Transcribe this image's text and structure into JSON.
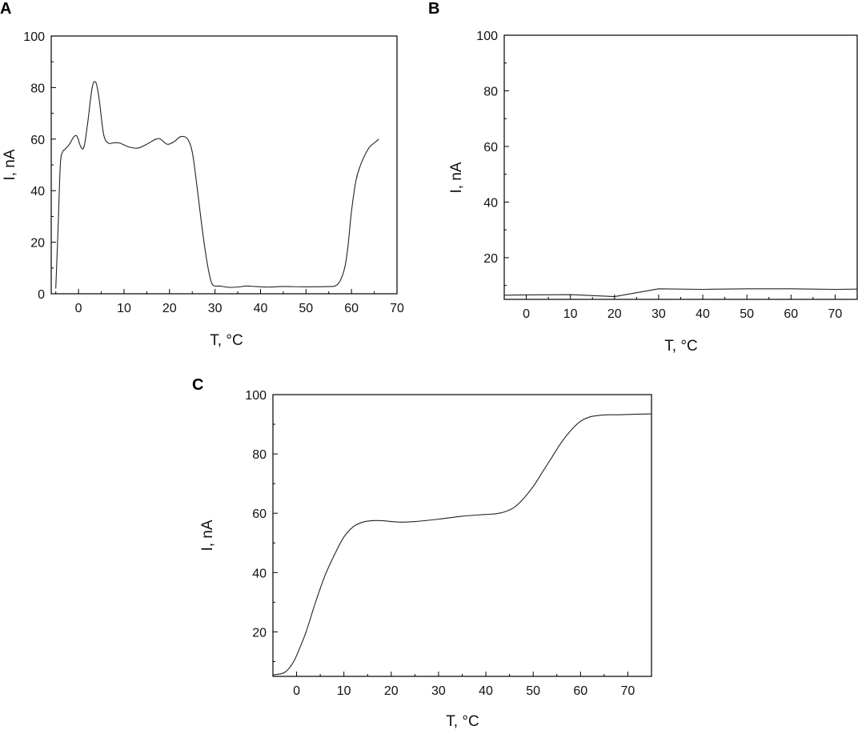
{
  "chart_data": [
    {
      "panel": "A",
      "type": "line",
      "xlabel": "T, °C",
      "ylabel": "I, nA",
      "xlim": [
        -6,
        70
      ],
      "ylim": [
        0,
        100
      ],
      "xticks": [
        0,
        10,
        20,
        30,
        40,
        50,
        60,
        70
      ],
      "yticks": [
        0,
        20,
        40,
        60,
        80,
        100
      ],
      "grid": false,
      "series": [
        {
          "x": [
            -5,
            -4.5,
            -4,
            -3.5,
            -3,
            -2,
            -1,
            -0.3,
            0.5,
            1.2,
            2,
            3,
            3.8,
            4.5,
            5.5,
            6.5,
            7.5,
            9,
            11,
            13,
            15,
            17,
            18,
            19.5,
            21,
            22.5,
            24,
            25,
            25.8,
            26.5,
            27.2,
            28,
            28.7,
            29.3,
            30,
            31,
            33,
            35,
            37,
            39,
            42,
            45,
            50,
            55,
            56.5,
            57.5,
            58.5,
            59.2,
            60,
            61,
            62,
            63,
            64,
            65,
            66
          ],
          "y": [
            2,
            25,
            50,
            55,
            56,
            58,
            61,
            61,
            57,
            57,
            66,
            80,
            82,
            76,
            62,
            58.5,
            58.5,
            58.5,
            57,
            56.5,
            58,
            60,
            60,
            58,
            59,
            61,
            60,
            55,
            45,
            35,
            25,
            15,
            8,
            4,
            3,
            3,
            2.5,
            2.6,
            3,
            2.8,
            2.6,
            2.8,
            2.7,
            2.8,
            3.1,
            5,
            10,
            18,
            32,
            44,
            50,
            54,
            57,
            58.5,
            60
          ]
        }
      ]
    },
    {
      "panel": "B",
      "type": "line",
      "xlabel": "T, °C",
      "ylabel": "I, nA",
      "xlim": [
        -5,
        75
      ],
      "ylim": [
        5,
        100
      ],
      "xticks": [
        0,
        10,
        20,
        30,
        40,
        50,
        60,
        70
      ],
      "yticks": [
        20,
        40,
        60,
        80,
        100
      ],
      "grid": false,
      "series": [
        {
          "x": [
            -5,
            0,
            10,
            20,
            30,
            40,
            50,
            60,
            70,
            75
          ],
          "y": [
            6.5,
            6.6,
            6.7,
            6,
            8.8,
            8.6,
            8.8,
            8.8,
            8.6,
            8.7
          ]
        }
      ]
    },
    {
      "panel": "C",
      "type": "line",
      "xlabel": "T, °C",
      "ylabel": "I, nA",
      "xlim": [
        -5,
        75
      ],
      "ylim": [
        5,
        100
      ],
      "xticks": [
        0,
        10,
        20,
        30,
        40,
        50,
        60,
        70
      ],
      "yticks": [
        20,
        40,
        60,
        80,
        100
      ],
      "grid": false,
      "series": [
        {
          "x": [
            -5,
            -3,
            -2,
            -1,
            0,
            2,
            4,
            6,
            8,
            10,
            12,
            14,
            16,
            18,
            20,
            22,
            25,
            30,
            35,
            40,
            42,
            44,
            46,
            48,
            50,
            52,
            54,
            56,
            58,
            60,
            62,
            64,
            66,
            68,
            70,
            72,
            75
          ],
          "y": [
            5.5,
            6,
            7,
            9,
            12,
            20,
            30,
            39,
            46,
            52,
            55.5,
            57,
            57.5,
            57.5,
            57.2,
            57,
            57.2,
            58,
            59,
            59.6,
            59.8,
            60.5,
            62,
            65,
            69,
            74,
            79,
            84,
            88,
            91,
            92.5,
            93,
            93.2,
            93.2,
            93.3,
            93.4,
            93.5
          ]
        }
      ]
    }
  ]
}
